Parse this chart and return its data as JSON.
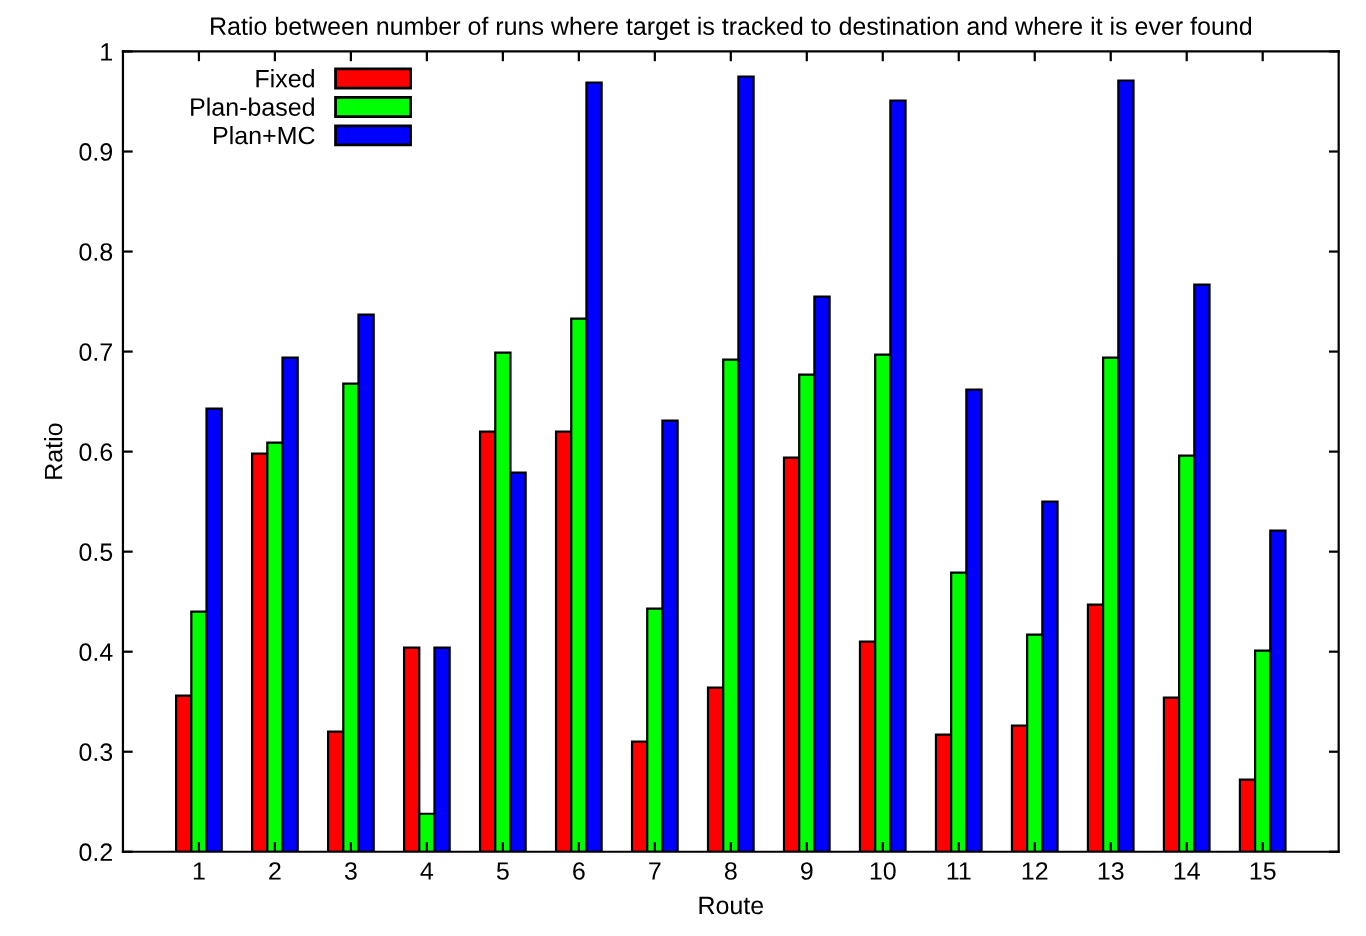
{
  "chart_data": {
    "type": "bar",
    "title": "Ratio between number of runs where target is tracked to destination and where it is ever found",
    "xlabel": "Route",
    "ylabel": "Ratio",
    "categories": [
      "1",
      "2",
      "3",
      "4",
      "5",
      "6",
      "7",
      "8",
      "9",
      "10",
      "11",
      "12",
      "13",
      "14",
      "15"
    ],
    "series": [
      {
        "name": "Fixed",
        "color": "#ff0000",
        "values": [
          0.356,
          0.598,
          0.32,
          0.404,
          0.62,
          0.62,
          0.31,
          0.364,
          0.594,
          0.41,
          0.317,
          0.326,
          0.447,
          0.354,
          0.272
        ]
      },
      {
        "name": "Plan-based",
        "color": "#00ff00",
        "values": [
          0.44,
          0.609,
          0.668,
          0.238,
          0.699,
          0.733,
          0.443,
          0.692,
          0.677,
          0.697,
          0.479,
          0.417,
          0.694,
          0.596,
          0.401
        ]
      },
      {
        "name": "Plan+MC",
        "color": "#0000ff",
        "values": [
          0.643,
          0.694,
          0.737,
          0.404,
          0.579,
          0.969,
          0.631,
          0.975,
          0.755,
          0.951,
          0.662,
          0.55,
          0.971,
          0.767,
          0.521
        ]
      }
    ],
    "ylim": [
      0.2,
      1
    ],
    "yticks": [
      0.2,
      0.3,
      0.4,
      0.5,
      0.6,
      0.7,
      0.8,
      0.9,
      1
    ],
    "grid": false,
    "legend": "top left"
  }
}
